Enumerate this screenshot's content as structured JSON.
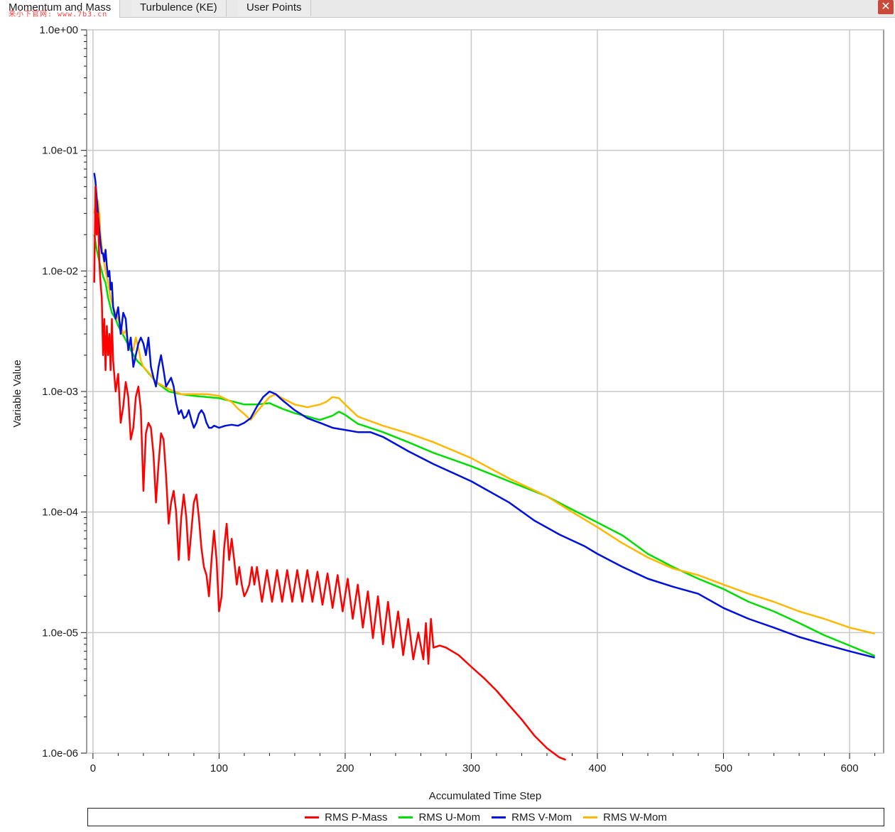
{
  "tabs": [
    {
      "label": "Momentum and Mass",
      "active": true
    },
    {
      "label": "Turbulence (KE)",
      "active": false
    },
    {
      "label": "User Points",
      "active": false
    }
  ],
  "watermark": "来小下官网: www.7b3.cn",
  "close_symbol": "✕",
  "chart_data": {
    "type": "line",
    "xlabel": "Accumulated Time Step",
    "ylabel": "Variable Value",
    "xlim": [
      -5,
      627
    ],
    "ylim": [
      1e-06,
      1
    ],
    "yscale": "log",
    "xticks": [
      0,
      100,
      200,
      300,
      400,
      500,
      600
    ],
    "yticks": [
      1,
      0.1,
      0.01,
      0.001,
      0.0001,
      1e-05,
      1e-06
    ],
    "ytick_labels": [
      "1.0e+00",
      "1.0e-01",
      "1.0e-02",
      "1.0e-03",
      "1.0e-04",
      "1.0e-05",
      "1.0e-06"
    ],
    "grid": true,
    "legend_position": "bottom",
    "series": [
      {
        "name": "RMS P-Mass",
        "color": "#ff0000",
        "x": [
          1,
          2,
          3,
          4,
          5,
          6,
          7,
          8,
          9,
          10,
          11,
          12,
          13,
          14,
          15,
          16,
          18,
          20,
          22,
          24,
          26,
          28,
          30,
          32,
          34,
          36,
          38,
          40,
          42,
          44,
          46,
          48,
          50,
          52,
          54,
          56,
          58,
          60,
          62,
          64,
          66,
          68,
          70,
          72,
          74,
          76,
          78,
          80,
          82,
          84,
          86,
          88,
          90,
          92,
          94,
          96,
          98,
          100,
          102,
          104,
          106,
          108,
          110,
          112,
          114,
          116,
          118,
          120,
          122,
          124,
          126,
          128,
          130,
          134,
          138,
          142,
          146,
          150,
          154,
          158,
          162,
          166,
          170,
          174,
          178,
          182,
          186,
          190,
          194,
          198,
          202,
          206,
          210,
          214,
          218,
          222,
          226,
          230,
          234,
          238,
          242,
          246,
          250,
          254,
          258,
          262,
          264,
          266,
          268,
          270,
          275,
          280,
          290,
          300,
          310,
          320,
          330,
          340,
          350,
          360,
          370,
          375
        ],
        "y": [
          0.008,
          0.05,
          0.02,
          0.03,
          0.012,
          0.008,
          0.006,
          0.002,
          0.004,
          0.0015,
          0.0035,
          0.002,
          0.003,
          0.0015,
          0.004,
          0.0018,
          0.001,
          0.0014,
          0.00055,
          0.00075,
          0.0012,
          0.0009,
          0.0004,
          0.0005,
          0.0009,
          0.0011,
          0.0007,
          0.00015,
          0.00045,
          0.00055,
          0.0005,
          0.0003,
          0.00012,
          0.00025,
          0.00045,
          0.0004,
          0.0002,
          8e-05,
          0.00012,
          0.00015,
          0.0001,
          4e-05,
          9e-05,
          0.00014,
          9e-05,
          4e-05,
          7e-05,
          0.00012,
          0.00014,
          9e-05,
          5e-05,
          3.5e-05,
          3e-05,
          2e-05,
          4e-05,
          7e-05,
          4e-05,
          1.5e-05,
          2e-05,
          5e-05,
          8e-05,
          4e-05,
          6e-05,
          4e-05,
          2.5e-05,
          3.5e-05,
          2.5e-05,
          2e-05,
          2.2e-05,
          2.5e-05,
          3.5e-05,
          2.5e-05,
          3.5e-05,
          1.8e-05,
          3.3e-05,
          1.8e-05,
          3.3e-05,
          1.8e-05,
          3.3e-05,
          1.8e-05,
          3.3e-05,
          1.8e-05,
          3.3e-05,
          1.8e-05,
          3.2e-05,
          1.7e-05,
          3.1e-05,
          1.6e-05,
          3e-05,
          1.5e-05,
          2.8e-05,
          1.3e-05,
          2.5e-05,
          1.1e-05,
          2.2e-05,
          9e-06,
          2e-05,
          8e-06,
          1.8e-05,
          7.5e-06,
          1.5e-05,
          6.5e-06,
          1.3e-05,
          6e-06,
          1e-05,
          6e-06,
          1.2e-05,
          5.5e-06,
          1.3e-05,
          7.5e-06,
          7.8e-06,
          7.5e-06,
          6.5e-06,
          5.2e-06,
          4.2e-06,
          3.3e-06,
          2.5e-06,
          1.9e-06,
          1.4e-06,
          1.1e-06,
          9.2e-07,
          8.8e-07
        ]
      },
      {
        "name": "RMS U-Mom",
        "color": "#00dd00",
        "x": [
          1,
          3,
          5,
          8,
          10,
          12,
          15,
          18,
          20,
          25,
          30,
          35,
          40,
          50,
          60,
          70,
          80,
          90,
          100,
          110,
          120,
          130,
          140,
          150,
          160,
          170,
          180,
          190,
          195,
          200,
          210,
          230,
          250,
          270,
          300,
          330,
          360,
          380,
          400,
          420,
          440,
          460,
          480,
          500,
          520,
          540,
          560,
          580,
          600,
          620
        ],
        "y": [
          0.02,
          0.015,
          0.012,
          0.009,
          0.008,
          0.006,
          0.0045,
          0.004,
          0.0035,
          0.0028,
          0.0022,
          0.0018,
          0.0016,
          0.0012,
          0.001,
          0.00095,
          0.00092,
          0.0009,
          0.00088,
          0.00083,
          0.00078,
          0.00078,
          0.0008,
          0.00072,
          0.00066,
          0.00062,
          0.00058,
          0.00063,
          0.00068,
          0.00064,
          0.00054,
          0.00046,
          0.00038,
          0.00031,
          0.00024,
          0.00018,
          0.000135,
          0.000105,
          8.2e-05,
          6.4e-05,
          4.5e-05,
          3.5e-05,
          2.8e-05,
          2.3e-05,
          1.8e-05,
          1.5e-05,
          1.2e-05,
          9.5e-06,
          7.8e-06,
          6.4e-06
        ]
      },
      {
        "name": "RMS V-Mom",
        "color": "#0011dd",
        "x": [
          1,
          2,
          3,
          4,
          5,
          6,
          7,
          8,
          9,
          10,
          11,
          12,
          13,
          14,
          15,
          16,
          18,
          20,
          22,
          24,
          26,
          28,
          30,
          32,
          34,
          36,
          38,
          40,
          42,
          44,
          46,
          48,
          50,
          52,
          54,
          56,
          58,
          60,
          62,
          64,
          66,
          68,
          70,
          72,
          74,
          76,
          78,
          80,
          82,
          84,
          86,
          88,
          90,
          92,
          94,
          96,
          98,
          100,
          105,
          110,
          115,
          120,
          125,
          130,
          135,
          140,
          145,
          150,
          160,
          170,
          180,
          190,
          200,
          210,
          220,
          230,
          250,
          270,
          300,
          330,
          350,
          370,
          390,
          400,
          420,
          440,
          460,
          480,
          500,
          520,
          540,
          560,
          580,
          600,
          620
        ],
        "y": [
          0.065,
          0.055,
          0.04,
          0.03,
          0.022,
          0.017,
          0.014,
          0.014,
          0.012,
          0.015,
          0.011,
          0.009,
          0.01,
          0.007,
          0.008,
          0.005,
          0.004,
          0.005,
          0.003,
          0.0045,
          0.004,
          0.0022,
          0.0028,
          0.0016,
          0.002,
          0.0025,
          0.0028,
          0.0025,
          0.002,
          0.0028,
          0.0016,
          0.0013,
          0.0011,
          0.0016,
          0.002,
          0.0015,
          0.0011,
          0.0012,
          0.0013,
          0.0011,
          0.0008,
          0.00065,
          0.0007,
          0.0006,
          0.00062,
          0.0007,
          0.00058,
          0.0005,
          0.00055,
          0.00065,
          0.0007,
          0.00065,
          0.00055,
          0.0005,
          0.0005,
          0.00052,
          0.00051,
          0.0005,
          0.00052,
          0.00053,
          0.00052,
          0.00055,
          0.0006,
          0.00075,
          0.0009,
          0.001,
          0.00095,
          0.00085,
          0.0007,
          0.0006,
          0.00055,
          0.0005,
          0.00048,
          0.00046,
          0.00046,
          0.00042,
          0.00032,
          0.00025,
          0.00018,
          0.00012,
          8.5e-05,
          6.5e-05,
          5.2e-05,
          4.5e-05,
          3.5e-05,
          2.8e-05,
          2.4e-05,
          2.1e-05,
          1.6e-05,
          1.3e-05,
          1.1e-05,
          9.2e-06,
          8e-06,
          7e-06,
          6.2e-06
        ]
      },
      {
        "name": "RMS W-Mom",
        "color": "#ffb800",
        "x": [
          1,
          2,
          3,
          4,
          5,
          6,
          8,
          10,
          12,
          14,
          16,
          18,
          20,
          22,
          24,
          26,
          28,
          30,
          32,
          34,
          36,
          38,
          40,
          45,
          50,
          60,
          70,
          80,
          90,
          100,
          110,
          115,
          120,
          125,
          130,
          140,
          145,
          150,
          160,
          170,
          180,
          185,
          190,
          195,
          200,
          210,
          230,
          250,
          270,
          300,
          330,
          360,
          380,
          400,
          420,
          440,
          460,
          480,
          500,
          520,
          540,
          560,
          580,
          600,
          620
        ],
        "y": [
          0.03,
          0.035,
          0.04,
          0.038,
          0.03,
          0.02,
          0.013,
          0.01,
          0.008,
          0.006,
          0.005,
          0.0045,
          0.004,
          0.0035,
          0.003,
          0.0032,
          0.0025,
          0.0024,
          0.0022,
          0.0028,
          0.0023,
          0.0018,
          0.0016,
          0.0014,
          0.0012,
          0.00105,
          0.00095,
          0.00095,
          0.00095,
          0.00092,
          0.00082,
          0.00072,
          0.00065,
          0.00058,
          0.00068,
          0.0009,
          0.00095,
          0.00088,
          0.00078,
          0.00074,
          0.00078,
          0.00082,
          0.0009,
          0.00088,
          0.00078,
          0.00062,
          0.00052,
          0.00045,
          0.00038,
          0.00028,
          0.00019,
          0.000135,
          0.0001,
          7.5e-05,
          5.5e-05,
          4.2e-05,
          3.4e-05,
          3e-05,
          2.5e-05,
          2.1e-05,
          1.8e-05,
          1.5e-05,
          1.3e-05,
          1.1e-05,
          9.8e-06
        ]
      }
    ]
  }
}
